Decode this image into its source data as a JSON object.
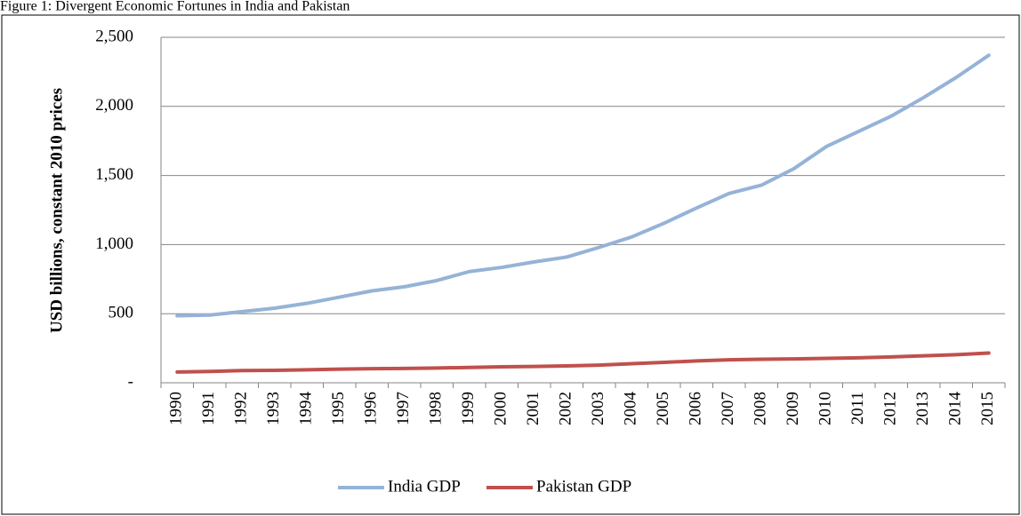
{
  "chart_data": {
    "type": "line",
    "title": "Figure 1: Divergent Economic Fortunes in India and Pakistan",
    "y_label": "USD billions, constant 2010 prices",
    "categories": [
      "1990",
      "1991",
      "1992",
      "1993",
      "1994",
      "1995",
      "1996",
      "1997",
      "1998",
      "1999",
      "2000",
      "2001",
      "2002",
      "2003",
      "2004",
      "2005",
      "2006",
      "2007",
      "2008",
      "2009",
      "2010",
      "2011",
      "2012",
      "2013",
      "2014",
      "2015"
    ],
    "series": [
      {
        "name": "India GDP",
        "color": "#95b3d7",
        "values": [
          485,
          490,
          515,
          540,
          575,
          620,
          665,
          695,
          740,
          805,
          835,
          875,
          910,
          980,
          1055,
          1155,
          1265,
          1370,
          1430,
          1550,
          1710,
          1820,
          1930,
          2065,
          2210,
          2370
        ]
      },
      {
        "name": "Pakistan GDP",
        "color": "#c0504d",
        "values": [
          78,
          82,
          88,
          90,
          94,
          99,
          102,
          104,
          107,
          111,
          116,
          118,
          122,
          128,
          138,
          148,
          158,
          166,
          170,
          173,
          177,
          181,
          187,
          195,
          203,
          215
        ]
      }
    ],
    "ylim": [
      0,
      2500
    ],
    "yticks": [
      {
        "value": 0,
        "label": "-"
      },
      500,
      {
        "value": 1000,
        "label": "1,000"
      },
      {
        "value": 1500,
        "label": "1,500"
      },
      {
        "value": 2000,
        "label": "2,000"
      },
      {
        "value": 2500,
        "label": "2,500"
      }
    ],
    "grid": true,
    "legend": "bottom"
  }
}
